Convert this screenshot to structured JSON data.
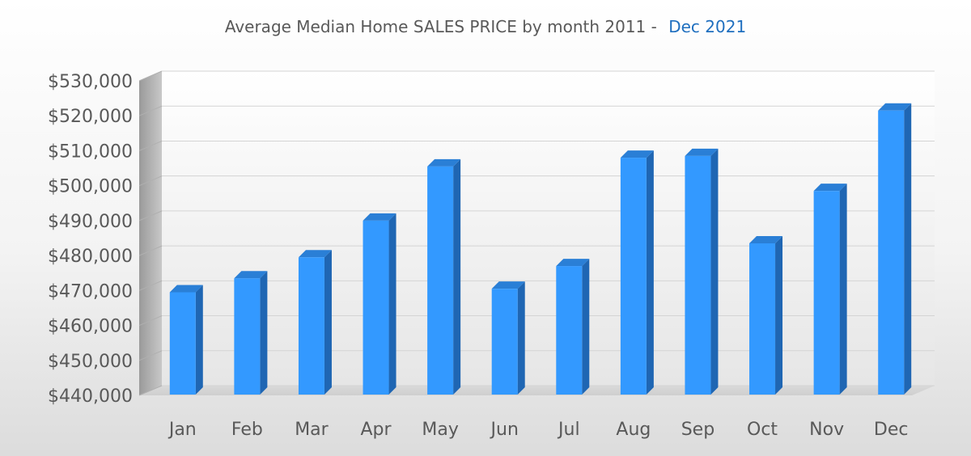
{
  "chart_data": {
    "type": "bar",
    "title": "Average Median Home SALES PRICE by month 2011 -",
    "title_highlight": "Dec 2021",
    "title_highlight_color": "#1f6fbf",
    "bar_color": "#3399ff",
    "bar_side_color": "#1f66b3",
    "bar_top_color": "#2a7fd6",
    "categories": [
      "Jan",
      "Feb",
      "Mar",
      "Apr",
      "May",
      "Jun",
      "Jul",
      "Aug",
      "Sep",
      "Oct",
      "Nov",
      "Dec"
    ],
    "values": [
      469500,
      473500,
      479500,
      490000,
      505500,
      470500,
      477000,
      508000,
      508500,
      483500,
      498500,
      521500
    ],
    "ylim": [
      440000,
      530000
    ],
    "yticks": [
      "$440,000",
      "$450,000",
      "$460,000",
      "$470,000",
      "$480,000",
      "$490,000",
      "$500,000",
      "$510,000",
      "$520,000",
      "$530,000"
    ],
    "grid": true
  }
}
